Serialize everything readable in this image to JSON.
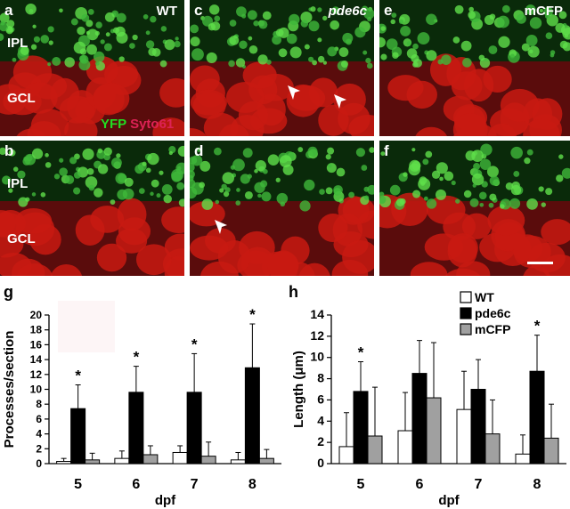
{
  "panels": {
    "a": {
      "letter": "a",
      "condition": "WT",
      "ipl": "IPL",
      "gcl": "GCL",
      "stain_yfp": "YFP",
      "stain_syto": "Syto61"
    },
    "b": {
      "letter": "b",
      "ipl": "IPL",
      "gcl": "GCL"
    },
    "c": {
      "letter": "c",
      "condition": "pde6c"
    },
    "d": {
      "letter": "d"
    },
    "e": {
      "letter": "e",
      "condition": "mCFP"
    },
    "f": {
      "letter": "f"
    }
  },
  "colors": {
    "yfp": "#22dd22",
    "syto": "#dd2255",
    "wt_bar": "#ffffff",
    "pde6c_bar": "#000000",
    "mcfp_bar": "#a0a0a0"
  },
  "chart_data": [
    {
      "panel": "g",
      "type": "bar",
      "ylabel": "Processes/section",
      "xlabel": "dpf",
      "categories": [
        "5",
        "6",
        "7",
        "8"
      ],
      "ylim": [
        0,
        20
      ],
      "yticks": [
        "0",
        "2",
        "4",
        "6",
        "8",
        "10",
        "12",
        "14",
        "16",
        "18",
        "20"
      ],
      "series": [
        {
          "values": [
            0.3,
            0.7,
            1.5,
            0.5
          ],
          "errors": [
            0.4,
            1.0,
            0.9,
            1.0
          ]
        },
        {
          "values": [
            7.4,
            9.6,
            9.6,
            12.9
          ],
          "errors": [
            3.2,
            3.5,
            5.2,
            5.9
          ]
        },
        {
          "values": [
            0.5,
            1.2,
            1.0,
            0.7
          ],
          "errors": [
            0.9,
            1.2,
            1.9,
            1.2
          ]
        }
      ],
      "significance": [
        "*",
        "*",
        "*",
        "*"
      ]
    },
    {
      "panel": "h",
      "type": "bar",
      "ylabel": "Length (μm)",
      "xlabel": "dpf",
      "categories": [
        "5",
        "6",
        "7",
        "8"
      ],
      "ylim": [
        0,
        14
      ],
      "yticks": [
        "0",
        "2",
        "4",
        "6",
        "8",
        "10",
        "12",
        "14"
      ],
      "series": [
        {
          "name": "WT",
          "values": [
            1.6,
            3.1,
            5.1,
            0.9
          ],
          "errors": [
            3.2,
            3.6,
            3.6,
            1.8
          ]
        },
        {
          "name": "pde6c",
          "values": [
            6.8,
            8.5,
            7.0,
            8.7
          ],
          "errors": [
            2.8,
            3.1,
            2.8,
            3.4
          ]
        },
        {
          "name": "mCFP",
          "values": [
            2.6,
            6.2,
            2.8,
            2.4
          ],
          "errors": [
            4.6,
            5.2,
            3.2,
            3.2
          ]
        }
      ],
      "significance": [
        "*",
        "",
        "",
        "*"
      ]
    }
  ]
}
